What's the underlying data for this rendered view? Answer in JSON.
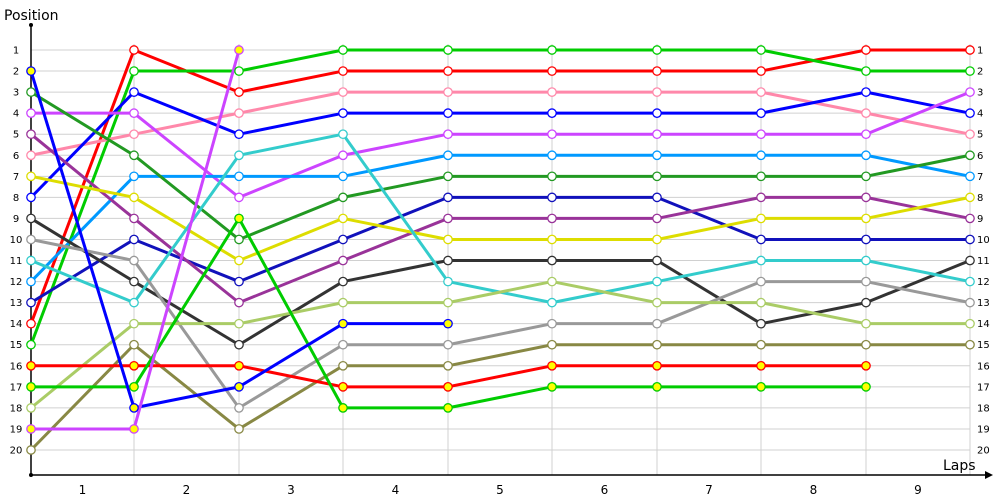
{
  "chart_data": {
    "type": "line",
    "title": "",
    "xlabel": "Laps",
    "ylabel": "Position",
    "y_ticks": [
      1,
      2,
      3,
      4,
      5,
      6,
      7,
      8,
      9,
      10,
      11,
      12,
      13,
      14,
      15,
      16,
      17,
      18,
      19,
      20
    ],
    "x_tick_labels": [
      "1",
      "2",
      "3",
      "4",
      "5",
      "6",
      "7",
      "8",
      "9"
    ],
    "ylim": [
      1,
      20
    ],
    "y_inverted": true,
    "grid": true,
    "legend": "none",
    "x": [
      0,
      1,
      2,
      3,
      4,
      5,
      6,
      7,
      8,
      9
    ],
    "series": [
      {
        "name": "red",
        "color": "#ff0000",
        "marker_fill": "#ffffff",
        "values": [
          14,
          1,
          3,
          2,
          2,
          2,
          2,
          2,
          1,
          1
        ]
      },
      {
        "name": "green",
        "color": "#00cc00",
        "marker_fill": "#ffffff",
        "values": [
          15,
          2,
          2,
          1,
          1,
          1,
          1,
          1,
          2,
          2
        ]
      },
      {
        "name": "pink",
        "color": "#ff88aa",
        "marker_fill": "#ffffff",
        "values": [
          6,
          5,
          4,
          3,
          3,
          3,
          3,
          3,
          4,
          5
        ]
      },
      {
        "name": "blue",
        "color": "#0000ff",
        "marker_fill": "#ffffff",
        "values": [
          8,
          3,
          5,
          4,
          4,
          4,
          4,
          4,
          3,
          4
        ]
      },
      {
        "name": "violet",
        "color": "#cc44ff",
        "marker_fill": "#ffffff",
        "values": [
          4,
          4,
          8,
          6,
          5,
          5,
          5,
          5,
          5,
          3
        ]
      },
      {
        "name": "azure",
        "color": "#0099ff",
        "marker_fill": "#ffffff",
        "values": [
          12,
          7,
          7,
          7,
          6,
          6,
          6,
          6,
          6,
          7
        ]
      },
      {
        "name": "dark-green",
        "color": "#229922",
        "marker_fill": "#ffffff",
        "values": [
          3,
          6,
          10,
          8,
          7,
          7,
          7,
          7,
          7,
          6
        ]
      },
      {
        "name": "navy",
        "color": "#1111bb",
        "marker_fill": "#ffffff",
        "values": [
          13,
          10,
          12,
          10,
          8,
          8,
          8,
          10,
          10,
          10
        ]
      },
      {
        "name": "purple",
        "color": "#993399",
        "marker_fill": "#ffffff",
        "values": [
          5,
          9,
          13,
          11,
          9,
          9,
          9,
          8,
          8,
          9
        ]
      },
      {
        "name": "yellow",
        "color": "#dddd00",
        "marker_fill": "#ffffff",
        "values": [
          7,
          8,
          11,
          9,
          10,
          10,
          10,
          9,
          9,
          8
        ]
      },
      {
        "name": "dark-gray",
        "color": "#333333",
        "marker_fill": "#ffffff",
        "values": [
          9,
          12,
          15,
          12,
          11,
          11,
          11,
          14,
          13,
          11
        ]
      },
      {
        "name": "teal",
        "color": "#33cccc",
        "marker_fill": "#ffffff",
        "values": [
          11,
          13,
          6,
          5,
          12,
          13,
          12,
          11,
          11,
          12
        ]
      },
      {
        "name": "gray",
        "color": "#999999",
        "marker_fill": "#ffffff",
        "values": [
          10,
          11,
          18,
          15,
          15,
          14,
          14,
          12,
          12,
          13
        ]
      },
      {
        "name": "light-green",
        "color": "#aacc66",
        "marker_fill": "#ffffff",
        "values": [
          18,
          14,
          14,
          13,
          13,
          12,
          13,
          13,
          14,
          14
        ]
      },
      {
        "name": "olive",
        "color": "#888844",
        "marker_fill": "#ffffff",
        "values": [
          20,
          15,
          19,
          16,
          16,
          15,
          15,
          15,
          15,
          15
        ]
      },
      {
        "name": "red-lapped",
        "color": "#ff0000",
        "marker_fill": "#ffff00",
        "values": [
          16,
          16,
          16,
          17,
          17,
          16,
          16,
          16,
          16,
          null
        ]
      },
      {
        "name": "green-lapped",
        "color": "#00cc00",
        "marker_fill": "#ffff00",
        "values": [
          17,
          17,
          9,
          18,
          18,
          17,
          17,
          17,
          17,
          null
        ]
      },
      {
        "name": "blue-lapped",
        "color": "#0000ff",
        "marker_fill": "#ffff00",
        "values": [
          2,
          18,
          17,
          14,
          14,
          null,
          null,
          null,
          null,
          null
        ]
      },
      {
        "name": "violet-lapped",
        "color": "#cc44ff",
        "marker_fill": "#ffff00",
        "values": [
          19,
          19,
          1,
          null,
          null,
          null,
          null,
          null,
          null,
          null
        ]
      }
    ],
    "right_axis_ticks": [
      1,
      2,
      3,
      4,
      5,
      6,
      7,
      8,
      9,
      10,
      11,
      12,
      13,
      14,
      15,
      16,
      17,
      18,
      19,
      20
    ]
  },
  "labels": {
    "y_axis_title": "Position",
    "x_axis_title": "Laps"
  }
}
